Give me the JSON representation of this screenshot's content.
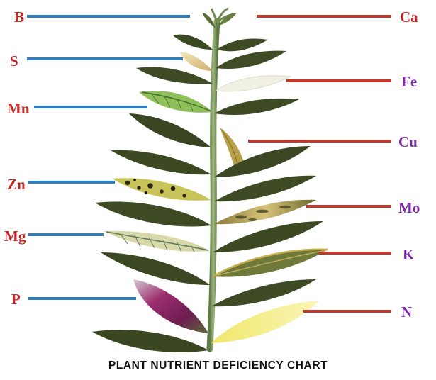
{
  "title": "PLANT NUTRIENT DEFICIENCY CHART",
  "colors": {
    "left_line": "#2e7fc1",
    "right_line": "#c0392b",
    "left_label": "#c62828",
    "right_label_red": "#c62828",
    "right_label_purple": "#7b2aa8",
    "leaf_healthy": "#3e4a22",
    "stem": "#7f9a5e"
  },
  "left_labels": [
    {
      "symbol": "B"
    },
    {
      "symbol": "S"
    },
    {
      "symbol": "Mn"
    },
    {
      "symbol": "Zn"
    },
    {
      "symbol": "Mg"
    },
    {
      "symbol": "P"
    }
  ],
  "right_labels": [
    {
      "symbol": "Ca"
    },
    {
      "symbol": "Fe"
    },
    {
      "symbol": "Cu"
    },
    {
      "symbol": "Mo"
    },
    {
      "symbol": "K"
    },
    {
      "symbol": "N"
    }
  ]
}
